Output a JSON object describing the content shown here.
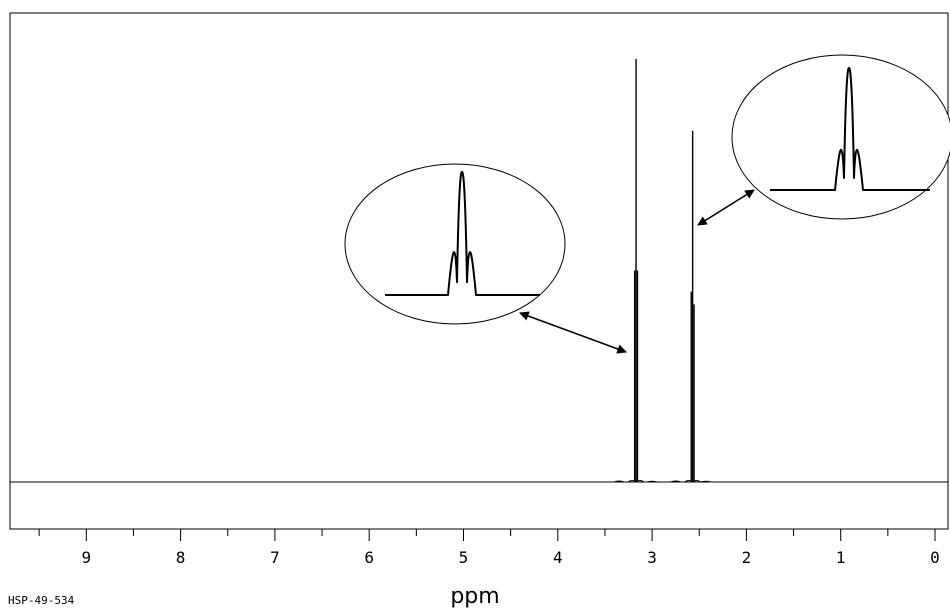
{
  "sample_id": "HSP-49-534",
  "chart_data": {
    "type": "line",
    "title": "",
    "xlabel": "ppm",
    "ylabel": "",
    "x_reversed": true,
    "xlim": [
      9.5,
      0
    ],
    "x_ticks": [
      9,
      8,
      7,
      6,
      5,
      4,
      3,
      2,
      1,
      0
    ],
    "x_tick_labels": [
      "9",
      "8",
      "7",
      "6",
      "5",
      "4",
      "3",
      "2",
      "1",
      "0"
    ],
    "x_minor_step": 0.5,
    "grid": false,
    "peaks": [
      {
        "name": "",
        "center_ppm": 3.17,
        "multiplicity": "triplet",
        "lines": [
          {
            "ppm": 3.185,
            "rel_intensity": 0.5
          },
          {
            "ppm": 3.17,
            "rel_intensity": 1.0
          },
          {
            "ppm": 3.155,
            "rel_intensity": 0.5
          }
        ]
      },
      {
        "name": "",
        "center_ppm": 2.57,
        "multiplicity": "triplet",
        "lines": [
          {
            "ppm": 2.585,
            "rel_intensity": 0.45
          },
          {
            "ppm": 2.57,
            "rel_intensity": 0.83
          },
          {
            "ppm": 2.555,
            "rel_intensity": 0.42
          }
        ]
      }
    ],
    "insets": [
      {
        "peak_index": 0,
        "multiplicity": "triplet"
      },
      {
        "peak_index": 1,
        "multiplicity": "triplet"
      }
    ]
  }
}
